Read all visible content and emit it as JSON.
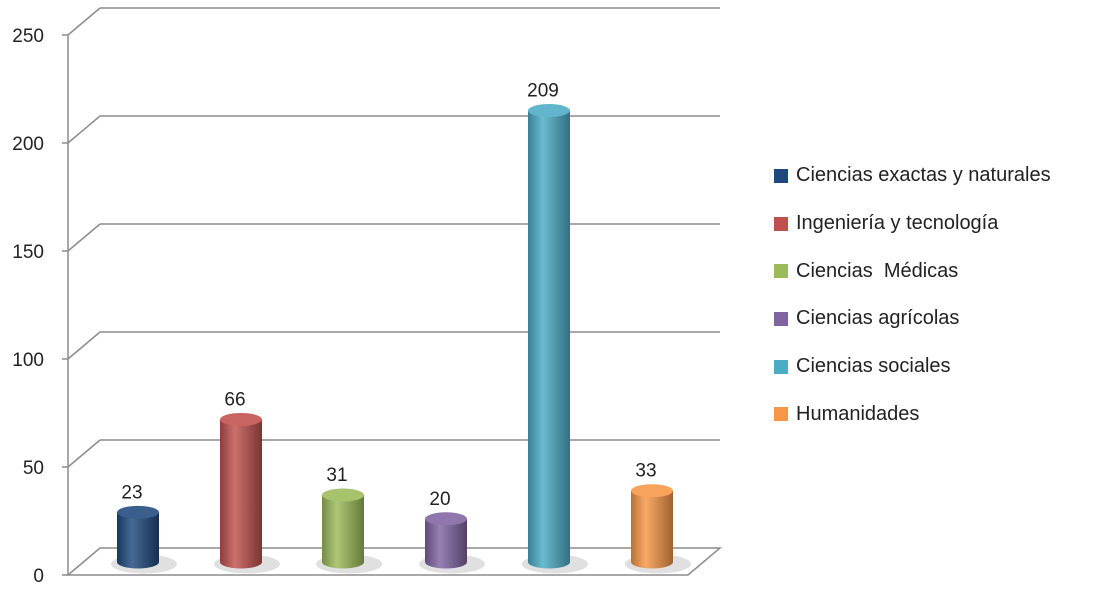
{
  "chart_data": {
    "type": "bar",
    "title": "",
    "xlabel": "",
    "ylabel": "",
    "ylim": [
      0,
      250
    ],
    "yticks": [
      0,
      50,
      100,
      150,
      200,
      250
    ],
    "grid": true,
    "legend_position": "right",
    "categories": [
      "Ciencias exactas y naturales",
      "Ingeniería y tecnología",
      "Ciencias  Médicas",
      "Ciencias agrícolas",
      "Ciencias sociales",
      "Humanidades"
    ],
    "values": [
      23,
      66,
      31,
      20,
      209,
      33
    ],
    "data_labels": [
      "23",
      "66",
      "31",
      "20",
      "209",
      "33"
    ],
    "colors": [
      "#1F497D",
      "#C0504D",
      "#9BBB59",
      "#8064A2",
      "#4BACC6",
      "#F79646"
    ]
  }
}
